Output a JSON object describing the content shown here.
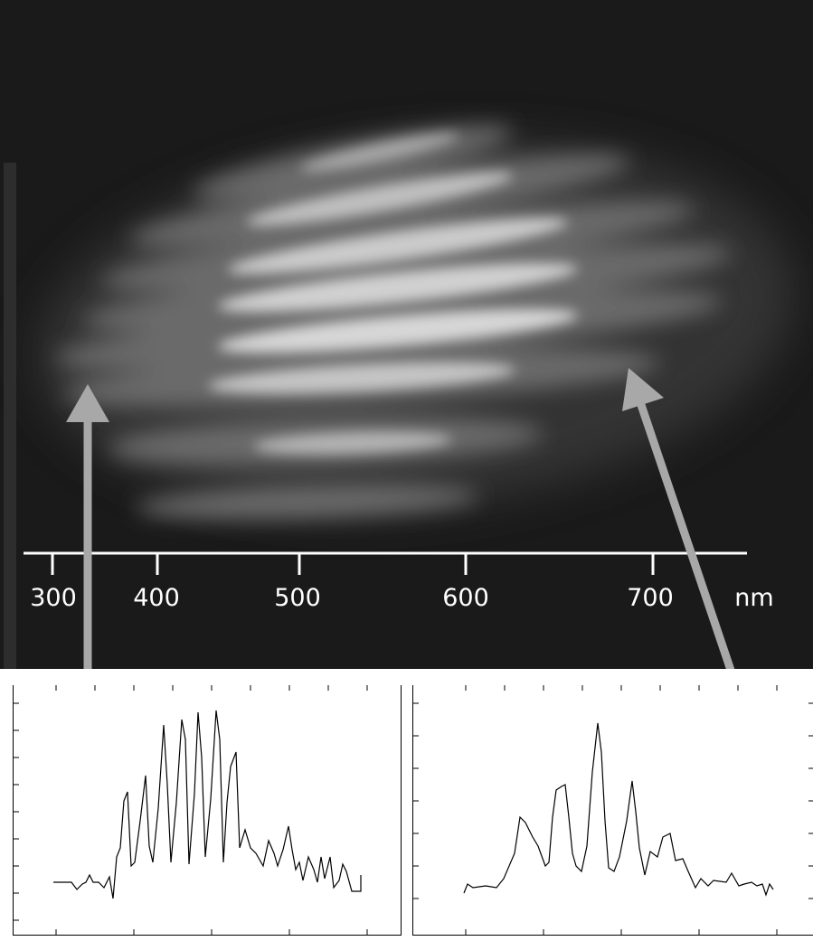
{
  "axis": {
    "ticks": [
      "300",
      "400",
      "500",
      "600",
      "700"
    ],
    "unit": "nm"
  },
  "image": {
    "description_colors": {
      "background": "#1a1a1a",
      "fringe": "#dcdcdc",
      "arrow": "#a8a8a8"
    },
    "fringe_band_count": 7
  },
  "panels": [
    {
      "name": "left-spectrum",
      "peak_count": 8
    },
    {
      "name": "right-spectrum",
      "peak_count": 3
    }
  ]
}
